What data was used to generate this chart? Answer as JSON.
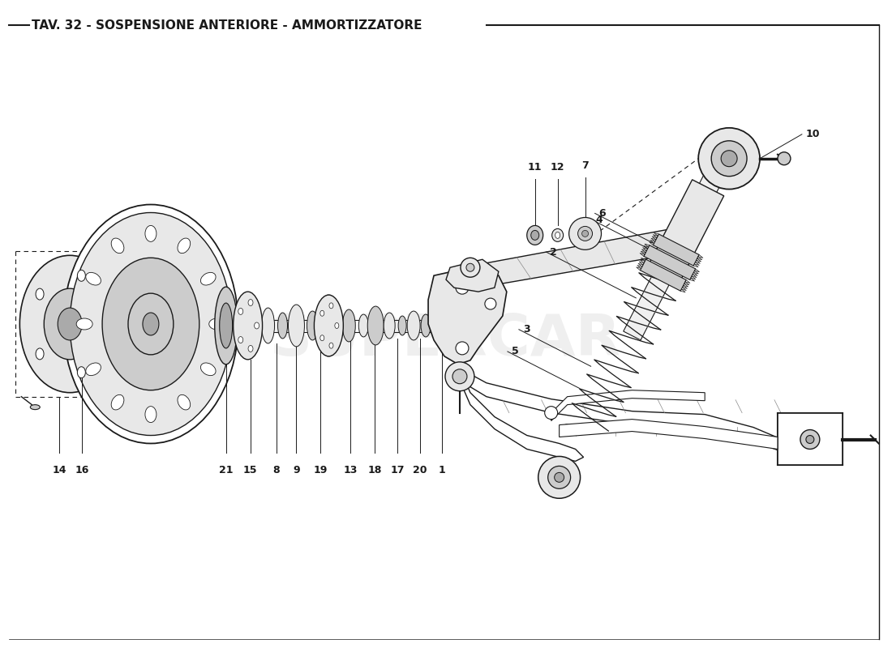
{
  "title": "TAV. 32 - SOSPENSIONE ANTERIORE - AMMORTIZZATORE",
  "bg_color": "#ffffff",
  "line_color": "#1a1a1a",
  "fill_light": "#e8e8e8",
  "fill_mid": "#cccccc",
  "fill_dark": "#aaaaaa",
  "title_fontsize": 11,
  "label_fontsize": 9,
  "fig_width": 11.0,
  "fig_height": 8.0,
  "watermark": "supercar"
}
